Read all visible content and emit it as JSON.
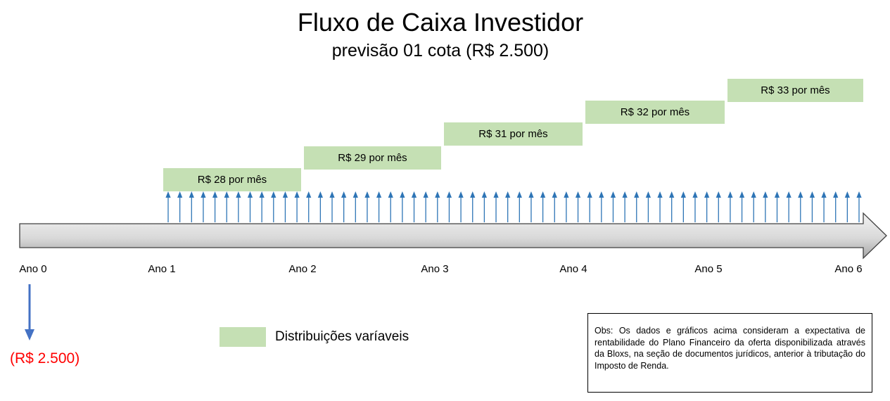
{
  "title": "Fluxo de Caixa Investidor",
  "subtitle": "previsão 01 cota (R$ 2.500)",
  "distributions": [
    {
      "label": "R$ 28 por mês",
      "value": 28,
      "start_year": 1,
      "end_year": 2
    },
    {
      "label": "R$ 29 por mês",
      "value": 29,
      "start_year": 2,
      "end_year": 3
    },
    {
      "label": "R$ 31 por mês",
      "value": 31,
      "start_year": 3,
      "end_year": 4
    },
    {
      "label": "R$ 32 por mês",
      "value": 32,
      "start_year": 4,
      "end_year": 5
    },
    {
      "label": "R$ 33 por mês",
      "value": 33,
      "start_year": 5,
      "end_year": 6
    }
  ],
  "years": [
    "Ano 0",
    "Ano 1",
    "Ano 2",
    "Ano 3",
    "Ano 4",
    "Ano 5",
    "Ano 6"
  ],
  "initial_investment": "(R$ 2.500)",
  "legend": {
    "label": "Distribuições varíaveis",
    "color": "#c5e0b4"
  },
  "note": "Obs: Os dados e gráficos acima consideram a expectativa de rentabilidade do Plano Financeiro da oferta disponibilizada através da Bloxs, na seção de documentos jurídicos, anterior à tributação do Imposto de Renda.",
  "colors": {
    "distribution_band": "#c5e0b4",
    "arrow_blue": "#2e75b6",
    "investment_arrow": "#4472c4",
    "investment_text": "#ff0000",
    "timeline_fill": "#d9d9d9"
  }
}
